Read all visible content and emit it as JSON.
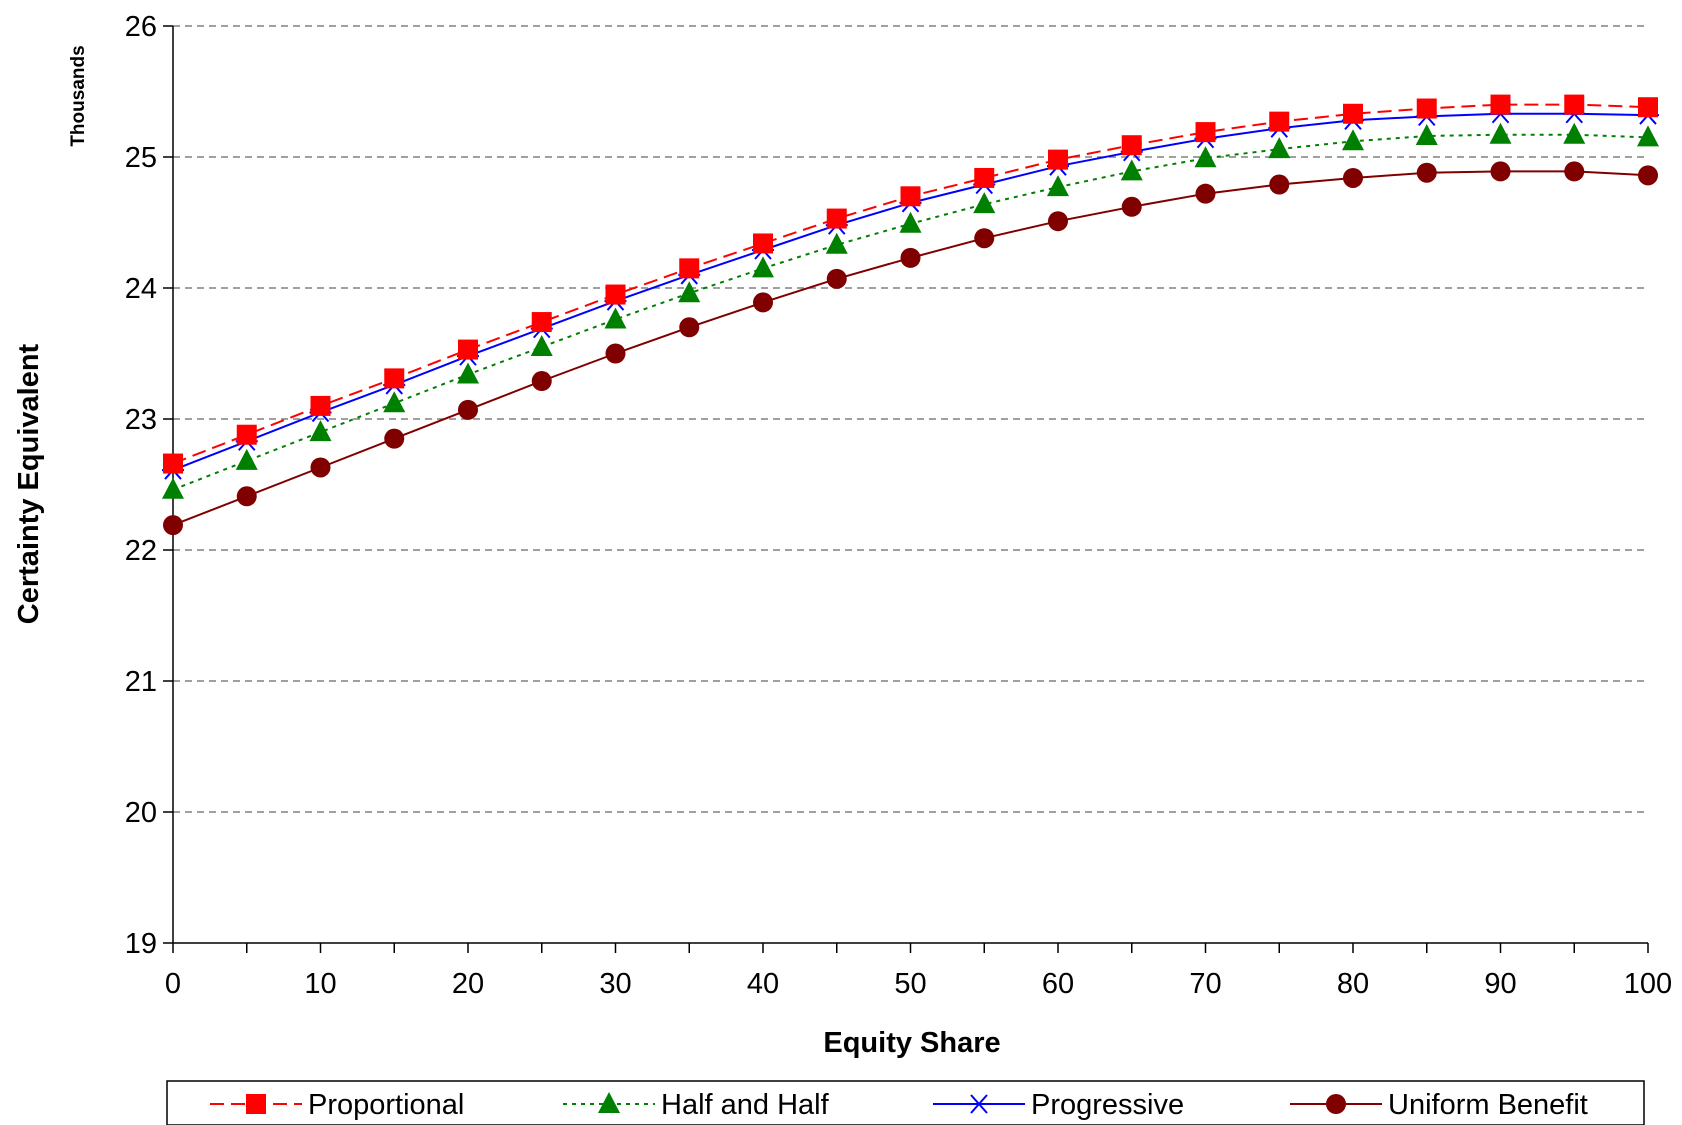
{
  "chart_data": {
    "type": "line",
    "xlabel": "Equity Share",
    "ylabel": "Certainty Equivalent",
    "y_units_label": "Thousands",
    "xlim": [
      0,
      100
    ],
    "ylim": [
      19,
      26
    ],
    "x_ticks": [
      "0",
      "10",
      "20",
      "30",
      "40",
      "50",
      "60",
      "70",
      "80",
      "90",
      "100"
    ],
    "y_ticks": [
      "19",
      "20",
      "21",
      "22",
      "23",
      "24",
      "25",
      "26"
    ],
    "grid": "horizontal dashed",
    "legend_position": "bottom",
    "x": [
      0,
      5,
      10,
      15,
      20,
      25,
      30,
      35,
      40,
      45,
      50,
      55,
      60,
      65,
      70,
      75,
      80,
      85,
      90,
      95,
      100
    ],
    "series": [
      {
        "name": "Proportional",
        "color": "#ff0000",
        "line": "dashed",
        "marker": "square",
        "values": [
          22.66,
          22.88,
          23.1,
          23.31,
          23.53,
          23.74,
          23.95,
          24.15,
          24.34,
          24.53,
          24.7,
          24.84,
          24.98,
          25.09,
          25.19,
          25.27,
          25.33,
          25.37,
          25.4,
          25.4,
          25.38
        ]
      },
      {
        "name": "Half and Half",
        "color": "#008000",
        "line": "dotted",
        "marker": "triangle",
        "values": [
          22.46,
          22.68,
          22.9,
          23.12,
          23.34,
          23.55,
          23.76,
          23.96,
          24.15,
          24.33,
          24.49,
          24.64,
          24.77,
          24.89,
          24.99,
          25.06,
          25.12,
          25.16,
          25.17,
          25.17,
          25.15
        ]
      },
      {
        "name": "Progressive",
        "color": "#0000ff",
        "line": "solid",
        "marker": "asterisk",
        "values": [
          22.61,
          22.83,
          23.05,
          23.26,
          23.48,
          23.69,
          23.9,
          24.1,
          24.29,
          24.48,
          24.65,
          24.79,
          24.93,
          25.04,
          25.14,
          25.22,
          25.28,
          25.31,
          25.33,
          25.33,
          25.32
        ]
      },
      {
        "name": "Uniform Benefit",
        "color": "#800000",
        "line": "solid",
        "marker": "circle",
        "values": [
          22.19,
          22.41,
          22.63,
          22.85,
          23.07,
          23.29,
          23.5,
          23.7,
          23.89,
          24.07,
          24.23,
          24.38,
          24.51,
          24.62,
          24.72,
          24.79,
          24.84,
          24.88,
          24.89,
          24.89,
          24.86
        ]
      }
    ]
  }
}
